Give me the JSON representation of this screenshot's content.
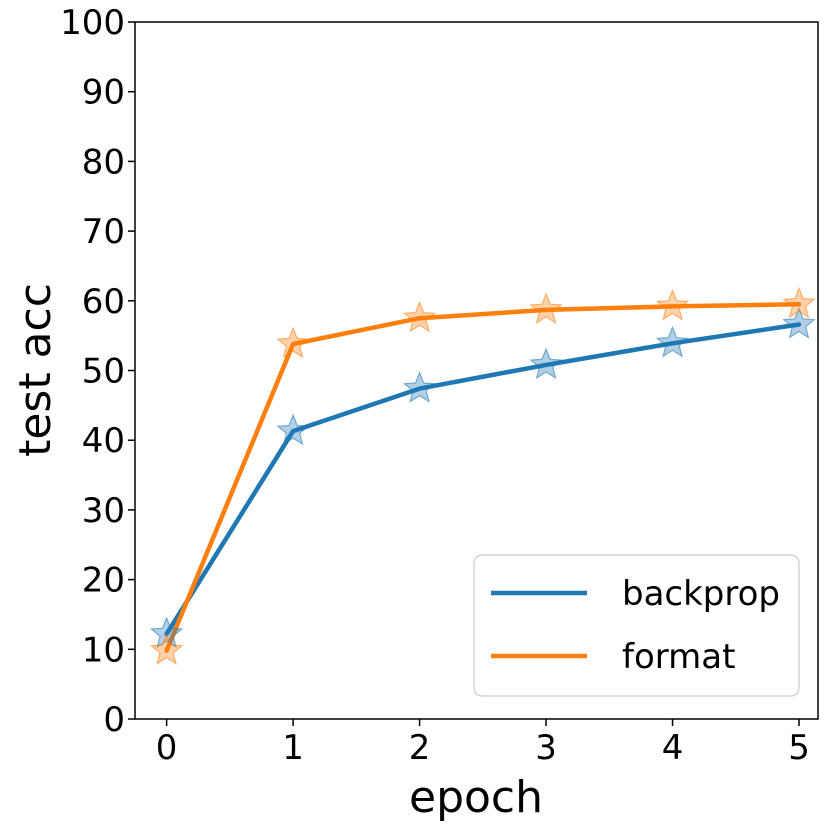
{
  "chart_data": {
    "type": "line",
    "xlabel": "epoch",
    "ylabel": "test acc",
    "x": [
      0,
      1,
      2,
      3,
      4,
      5
    ],
    "xlim": [
      -0.25,
      5.15
    ],
    "ylim": [
      0,
      100
    ],
    "xticks": [
      "0",
      "1",
      "2",
      "3",
      "4",
      "5"
    ],
    "yticks": [
      "0",
      "10",
      "20",
      "30",
      "40",
      "50",
      "60",
      "70",
      "80",
      "90",
      "100"
    ],
    "grid": false,
    "legend_position": "bottom-right",
    "marker": "star",
    "series": [
      {
        "name": "backprop",
        "color": "#1f77b4",
        "values": [
          12.2,
          41.3,
          47.4,
          50.8,
          53.9,
          56.6
        ]
      },
      {
        "name": "format",
        "color": "#ff7f0e",
        "values": [
          9.8,
          53.8,
          57.5,
          58.7,
          59.2,
          59.5
        ]
      }
    ]
  }
}
